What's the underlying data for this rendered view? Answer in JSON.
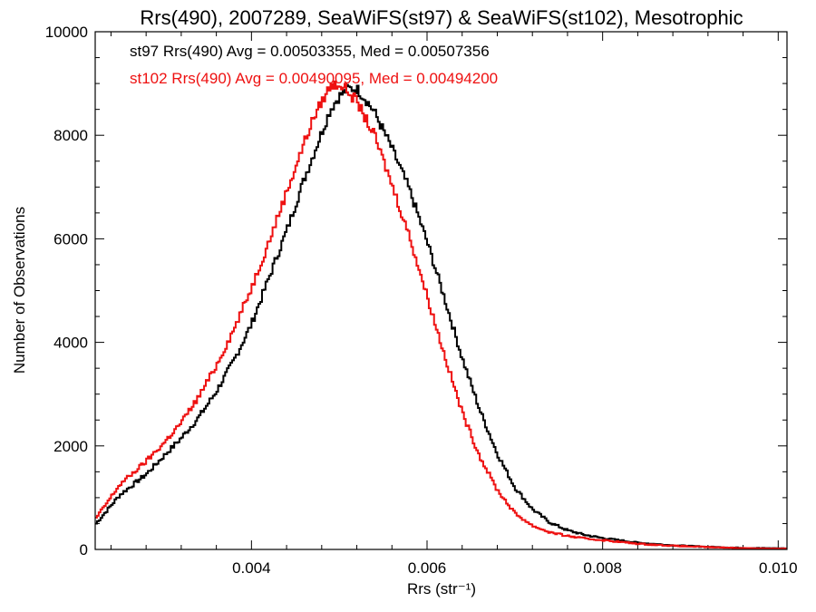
{
  "chart_data": {
    "type": "line",
    "title": "Rrs(490), 2007289, SeaWiFS(st97) & SeaWiFS(st102), Mesotrophic",
    "xlabel": "Rrs (str⁻¹)",
    "ylabel": "Number of Observations",
    "xlim": [
      0.00222,
      0.0101
    ],
    "ylim": [
      0,
      10000
    ],
    "x_ticks": [
      0.004,
      0.006,
      0.008,
      0.01
    ],
    "x_tick_labels": [
      "0.004",
      "0.006",
      "0.008",
      "0.010"
    ],
    "y_ticks": [
      0,
      2000,
      4000,
      6000,
      8000,
      10000
    ],
    "y_tick_labels": [
      "0",
      "2000",
      "4000",
      "6000",
      "8000",
      "10000"
    ],
    "grid": false,
    "annotations": [
      {
        "text": "st97 Rrs(490) Avg = 0.00503355, Med = 0.00507356",
        "color": "#000000"
      },
      {
        "text": "st102 Rrs(490) Avg = 0.00490095, Med = 0.00494200",
        "color": "#ee1111"
      }
    ],
    "series": [
      {
        "color": "#000000",
        "step": true,
        "x": [
          0.00222,
          0.0025,
          0.0028,
          0.003,
          0.0032,
          0.0034,
          0.0036,
          0.0038,
          0.004,
          0.0042,
          0.0044,
          0.0046,
          0.0048,
          0.0049,
          0.005,
          0.0051,
          0.0052,
          0.0053,
          0.0054,
          0.0056,
          0.0058,
          0.006,
          0.0062,
          0.0064,
          0.0066,
          0.0068,
          0.007,
          0.0072,
          0.0074,
          0.0076,
          0.0078,
          0.008,
          0.0084,
          0.0088,
          0.0092,
          0.0096,
          0.0101
        ],
        "y": [
          480,
          1050,
          1450,
          1800,
          2150,
          2550,
          3050,
          3650,
          4350,
          5250,
          6150,
          7150,
          8050,
          8500,
          8750,
          8900,
          8900,
          8700,
          8450,
          7750,
          6950,
          5950,
          4850,
          3700,
          2700,
          1850,
          1200,
          780,
          520,
          370,
          280,
          220,
          130,
          80,
          50,
          30,
          20
        ]
      },
      {
        "color": "#ee1111",
        "step": true,
        "x": [
          0.00222,
          0.0025,
          0.0028,
          0.003,
          0.0032,
          0.0034,
          0.0036,
          0.0038,
          0.004,
          0.0042,
          0.0044,
          0.0046,
          0.0047,
          0.0048,
          0.0049,
          0.005,
          0.0051,
          0.0052,
          0.0054,
          0.0056,
          0.0058,
          0.006,
          0.0062,
          0.0064,
          0.0066,
          0.0068,
          0.007,
          0.0072,
          0.0074,
          0.0076,
          0.0078,
          0.008,
          0.0084,
          0.0088,
          0.0092,
          0.0096,
          0.0101
        ],
        "y": [
          580,
          1250,
          1700,
          2050,
          2450,
          2950,
          3550,
          4250,
          5050,
          5950,
          6900,
          7850,
          8300,
          8650,
          8950,
          9000,
          8850,
          8650,
          8000,
          7050,
          6050,
          4900,
          3750,
          2650,
          1800,
          1150,
          700,
          460,
          330,
          260,
          210,
          180,
          110,
          70,
          45,
          25,
          15
        ]
      }
    ]
  }
}
